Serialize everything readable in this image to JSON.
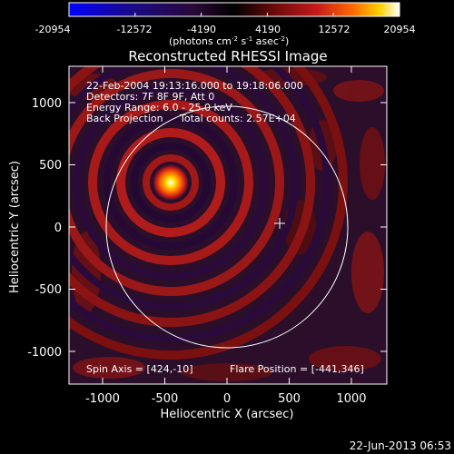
{
  "colorbar": {
    "ticks": [
      "-20954",
      "-12572",
      "-4190",
      "4190",
      "12572",
      "20954"
    ],
    "unit_main": "(photons cm",
    "unit_sup1": "-2",
    "unit_s": " s",
    "unit_sup2": "-1",
    "unit_asec": " asec",
    "unit_sup3": "-2",
    "unit_close": ")"
  },
  "title": "Reconstructed RHESSI Image",
  "info": {
    "line1": "22-Feb-2004 19:13:16.000 to 19:18:06.000",
    "line2": "Detectors: 7F 8F 9F, Att 0",
    "line3": "Energy Range: 6.0 - 25.0 keV",
    "line4a": "Back Projection",
    "line4b": "Total counts: 2.57E+04",
    "spin_axis": "Spin Axis = [424,-10]",
    "flare_position": "Flare Position = [-441,346]"
  },
  "axes": {
    "xlabel": "Heliocentric X (arcsec)",
    "ylabel": "Heliocentric Y (arcsec)",
    "xticks": [
      "-1000",
      "-500",
      "0",
      "500",
      "1000"
    ],
    "yticks": [
      "1000",
      "500",
      "0",
      "-500",
      "-1000"
    ]
  },
  "footer": {
    "date": "22-Jun-2013 06:53"
  },
  "image": {
    "source_center_arcsec": [
      -441,
      346
    ],
    "crosshair_arcsec": [
      424,
      -10
    ],
    "solar_limb_radius_arcsec": 970,
    "colormap": [
      "#0000ff",
      "#1a0a8a",
      "#2a0838",
      "#000000",
      "#5a0a0a",
      "#c41a1a",
      "#ff6a00",
      "#ffd000",
      "#ffffff"
    ]
  }
}
